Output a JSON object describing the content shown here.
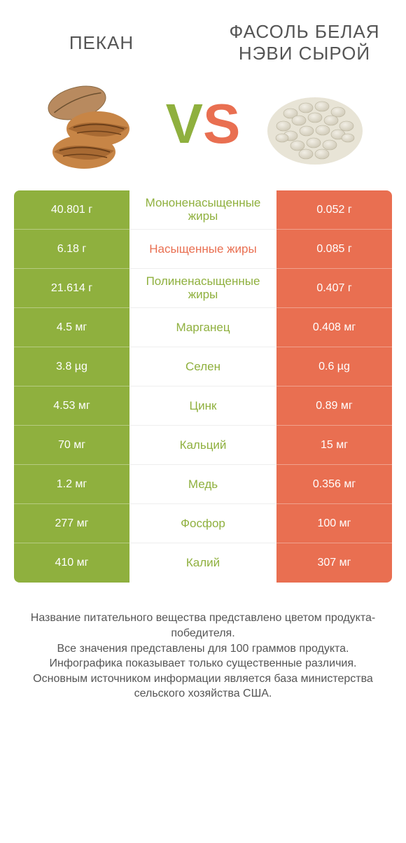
{
  "colors": {
    "green": "#8fb03e",
    "orange": "#e96f51",
    "text": "#555555",
    "white": "#ffffff"
  },
  "header": {
    "left": "ПЕКАН",
    "right": "ФАСОЛЬ БЕЛАЯ НЭВИ СЫРОЙ"
  },
  "vs": {
    "v": "V",
    "s": "S"
  },
  "rows": [
    {
      "left": "40.801 г",
      "label": "Мононенасыщенные жиры",
      "right": "0.052 г",
      "winner": "left"
    },
    {
      "left": "6.18 г",
      "label": "Насыщенные жиры",
      "right": "0.085 г",
      "winner": "right"
    },
    {
      "left": "21.614 г",
      "label": "Полиненасыщенные жиры",
      "right": "0.407 г",
      "winner": "left"
    },
    {
      "left": "4.5 мг",
      "label": "Марганец",
      "right": "0.408 мг",
      "winner": "left"
    },
    {
      "left": "3.8 µg",
      "label": "Селен",
      "right": "0.6 µg",
      "winner": "left"
    },
    {
      "left": "4.53 мг",
      "label": "Цинк",
      "right": "0.89 мг",
      "winner": "left"
    },
    {
      "left": "70 мг",
      "label": "Кальций",
      "right": "15 мг",
      "winner": "left"
    },
    {
      "left": "1.2 мг",
      "label": "Медь",
      "right": "0.356 мг",
      "winner": "left"
    },
    {
      "left": "277 мг",
      "label": "Фосфор",
      "right": "100 мг",
      "winner": "left"
    },
    {
      "left": "410 мг",
      "label": "Калий",
      "right": "307 мг",
      "winner": "left"
    }
  ],
  "footer": {
    "l1": "Название питательного вещества представлено цветом продукта-победителя.",
    "l2": "Все значения представлены для 100 граммов продукта.",
    "l3": "Инфографика показывает только существенные различия.",
    "l4": "Основным источником информации является база министерства сельского хозяйства США."
  }
}
